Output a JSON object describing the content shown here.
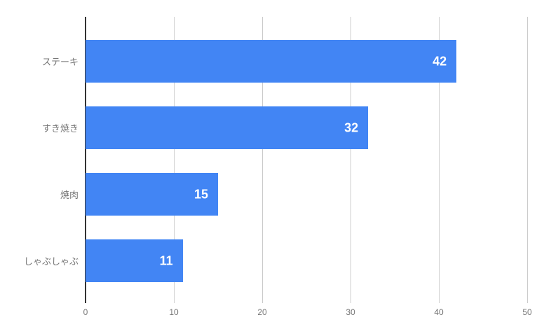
{
  "chart_data": {
    "type": "bar",
    "orientation": "horizontal",
    "title": "",
    "xlabel": "",
    "ylabel": "",
    "categories": [
      "ステーキ",
      "すき焼き",
      "焼肉",
      "しゃぶしゃぶ"
    ],
    "values": [
      42,
      32,
      15,
      11
    ],
    "xlim": [
      0,
      50
    ],
    "xticks": [
      0,
      10,
      20,
      30,
      40,
      50
    ],
    "grid": true,
    "legend": "none",
    "colors": {
      "bar": "#4285f4",
      "annotation": "#ffffff",
      "axis_baseline": "#333333",
      "gridline": "#cccccc",
      "tick_label": "#757575",
      "category_label": "#757575",
      "background": "#ffffff"
    }
  }
}
